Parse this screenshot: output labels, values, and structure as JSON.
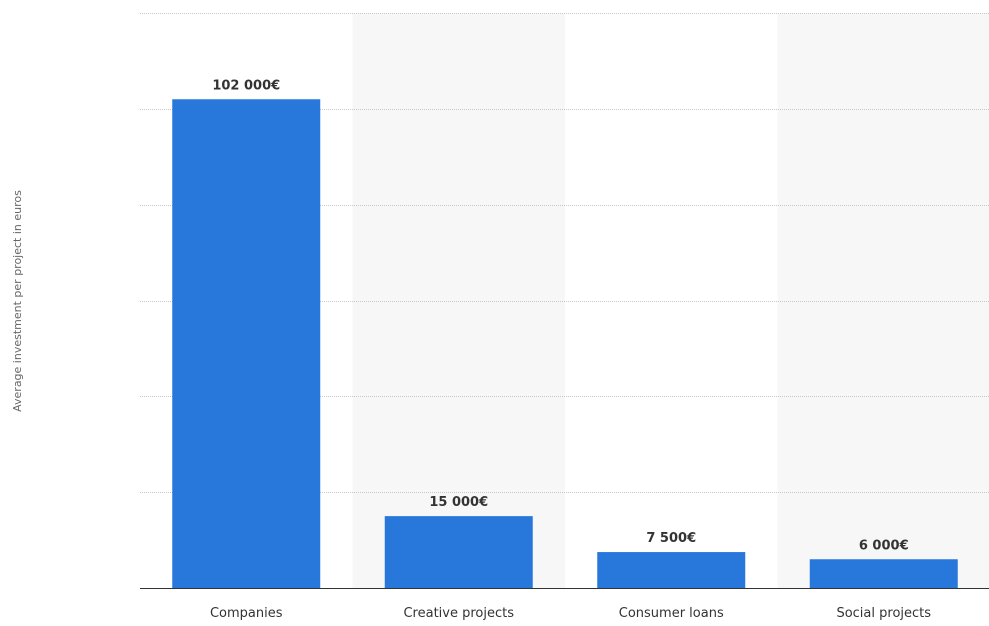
{
  "chart_data": {
    "type": "bar",
    "title": "",
    "xlabel": "",
    "ylabel": "Average investment per project in euros",
    "categories": [
      "Companies",
      "Creative projects",
      "Consumer loans",
      "Social projects"
    ],
    "values": [
      102000,
      15000,
      7500,
      6000
    ],
    "value_labels": [
      "102 000€",
      "15 000€",
      "7 500€",
      "6 000€"
    ],
    "ylim": [
      0,
      120000
    ],
    "y_gridline_step": 20000,
    "grid": true,
    "legend": "none",
    "colors": {
      "bar": "#2878dc",
      "alternate_band": "#f7f7f7",
      "gridline": "#c8c8c8",
      "baseline": "#333333"
    }
  }
}
